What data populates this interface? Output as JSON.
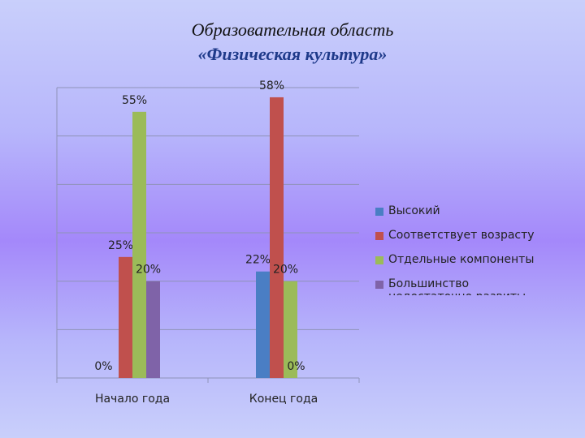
{
  "title_line1": "Образовательная область",
  "title_line2": "«Физическая культура»",
  "chart_data": {
    "type": "bar",
    "categories": [
      "Начало года",
      "Конец года"
    ],
    "series": [
      {
        "name": "Высокий",
        "color": "#4a7ec4",
        "values": [
          0,
          22
        ]
      },
      {
        "name": "Соответствует возрасту",
        "color": "#c0504d",
        "values": [
          25,
          58
        ]
      },
      {
        "name": "Отдельные компоненты",
        "color": "#9bbb59",
        "values": [
          55,
          20
        ]
      },
      {
        "name": "Большинство недостаточно развиты",
        "color": "#7f63a8",
        "values": [
          20,
          0
        ]
      }
    ],
    "value_labels": [
      [
        "0%",
        "22%"
      ],
      [
        "25%",
        "58%"
      ],
      [
        "55%",
        "20%"
      ],
      [
        "20%",
        "0%"
      ]
    ],
    "ylim": [
      0,
      60
    ],
    "grid": true,
    "legend_position": "right"
  }
}
